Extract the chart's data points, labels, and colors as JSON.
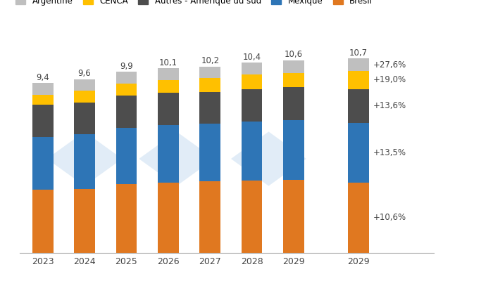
{
  "years": [
    "2023",
    "2024",
    "2025",
    "2026",
    "2027",
    "2028",
    "2029",
    "2029"
  ],
  "totals": [
    9.4,
    9.6,
    9.9,
    10.1,
    10.2,
    10.4,
    10.6,
    10.7
  ],
  "bresil": [
    3.5,
    3.55,
    3.8,
    3.9,
    3.95,
    4.0,
    4.05,
    3.9
  ],
  "mexique": [
    2.9,
    3.0,
    3.1,
    3.15,
    3.2,
    3.25,
    3.3,
    3.3
  ],
  "autres": [
    1.8,
    1.75,
    1.8,
    1.8,
    1.75,
    1.8,
    1.8,
    1.85
  ],
  "cenca": [
    0.55,
    0.65,
    0.65,
    0.7,
    0.75,
    0.8,
    0.8,
    1.0
  ],
  "argentine": [
    0.65,
    0.65,
    0.65,
    0.65,
    0.65,
    0.65,
    0.7,
    0.7
  ],
  "colors": {
    "bresil": "#E07820",
    "mexique": "#2E75B6",
    "autres": "#4D4D4D",
    "cenca": "#FFC000",
    "argentine": "#BFBFBF"
  },
  "labels": {
    "bresil": "Brésil",
    "mexique": "Mexique",
    "autres": "Autres - Amérique du sud",
    "cenca": "CENCA",
    "argentine": "Argentine"
  },
  "annot_map": {
    "bresil": "+10,6%",
    "mexique": "+13,5%",
    "autres": "+13,6%",
    "cenca": "+19,0%",
    "argentine": "+27,6%"
  },
  "background_color": "#FFFFFF",
  "bar_width": 0.5
}
